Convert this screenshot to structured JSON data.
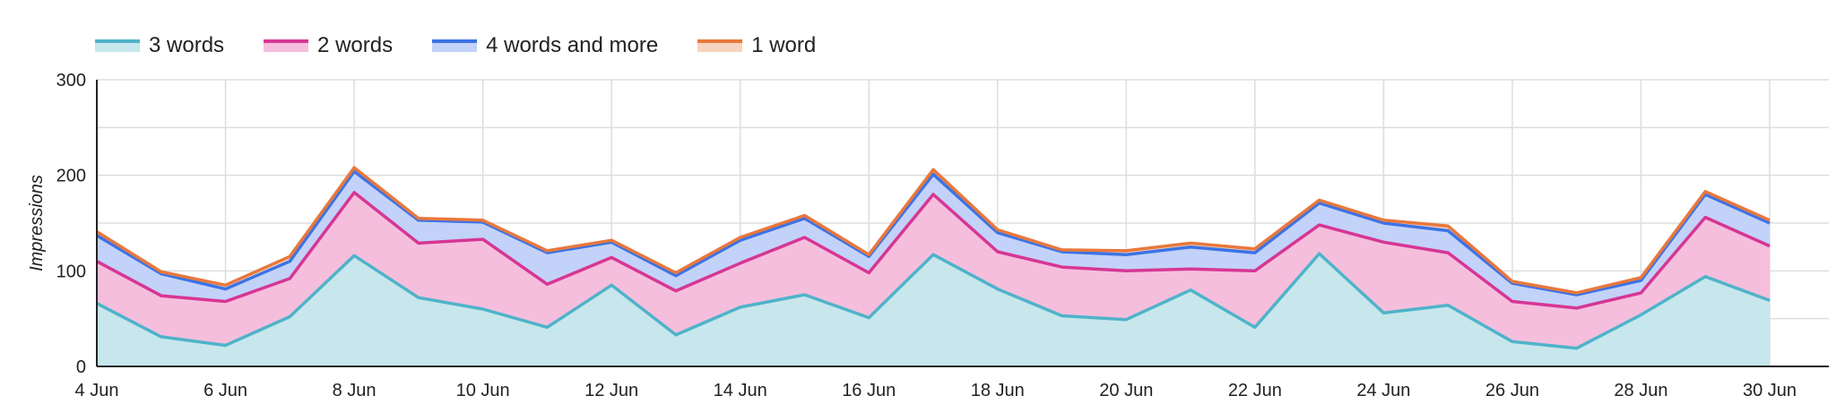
{
  "chart_data": {
    "type": "area",
    "stacked": true,
    "ylabel": "Impressions",
    "xlabel": "",
    "ylim": [
      0,
      300
    ],
    "y_ticks": [
      0,
      100,
      200,
      300
    ],
    "x_tick_labels": [
      "4 Jun",
      "6 Jun",
      "8 Jun",
      "10 Jun",
      "12 Jun",
      "14 Jun",
      "16 Jun",
      "18 Jun",
      "20 Jun",
      "22 Jun",
      "24 Jun",
      "26 Jun",
      "28 Jun",
      "30 Jun"
    ],
    "x": [
      "4 Jun",
      "5 Jun",
      "6 Jun",
      "7 Jun",
      "8 Jun",
      "9 Jun",
      "10 Jun",
      "11 Jun",
      "12 Jun",
      "13 Jun",
      "14 Jun",
      "15 Jun",
      "16 Jun",
      "17 Jun",
      "18 Jun",
      "19 Jun",
      "20 Jun",
      "21 Jun",
      "22 Jun",
      "23 Jun",
      "24 Jun",
      "25 Jun",
      "26 Jun",
      "27 Jun",
      "28 Jun",
      "29 Jun",
      "30 Jun"
    ],
    "grid": true,
    "legend_position": "top-left",
    "series": [
      {
        "name": "3 words",
        "line_color": "#4fb3c9",
        "fill_color": "#c7e7ec",
        "values": [
          66,
          31,
          22,
          52,
          116,
          72,
          60,
          41,
          85,
          33,
          62,
          75,
          51,
          117,
          81,
          53,
          49,
          80,
          41,
          118,
          56,
          64,
          26,
          19,
          54,
          94,
          69
        ]
      },
      {
        "name": "2 words",
        "line_color": "#d63694",
        "fill_color": "#f6bedd",
        "values": [
          44,
          43,
          46,
          40,
          66,
          57,
          73,
          45,
          29,
          46,
          46,
          60,
          47,
          63,
          39,
          51,
          51,
          22,
          59,
          30,
          74,
          55,
          42,
          42,
          23,
          62,
          57
        ]
      },
      {
        "name": "4 words and more",
        "line_color": "#3c73e6",
        "fill_color": "#c3d2f8",
        "values": [
          27,
          23,
          13,
          18,
          22,
          24,
          18,
          33,
          16,
          16,
          24,
          20,
          17,
          21,
          20,
          16,
          17,
          23,
          19,
          23,
          20,
          23,
          19,
          14,
          13,
          24,
          24
        ]
      },
      {
        "name": "1 word",
        "line_color": "#e8783d",
        "fill_color": "#f7d4bf",
        "values": [
          4,
          2,
          4,
          5,
          4,
          2,
          2,
          2,
          2,
          3,
          3,
          3,
          2,
          5,
          3,
          2,
          4,
          4,
          4,
          3,
          3,
          5,
          2,
          2,
          3,
          3,
          3
        ]
      }
    ]
  }
}
